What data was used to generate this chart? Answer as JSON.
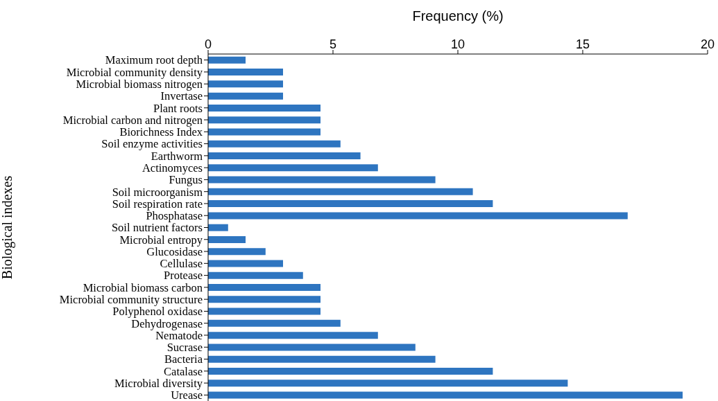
{
  "chart_data": {
    "type": "bar",
    "orientation": "horizontal",
    "xlabel": "Frequency (%)",
    "ylabel": "Biological indexes",
    "categories": [
      "Maximum root depth",
      "Microbial community density",
      "Microbial biomass nitrogen",
      "Invertase",
      "Plant roots",
      "Microbial carbon and nitrogen",
      "Biorichness Index",
      "Soil enzyme activities",
      "Earthworm",
      "Actinomyces",
      "Fungus",
      "Soil microorganism",
      "Soil respiration rate",
      "Phosphatase",
      "Soil nutrient factors",
      "Microbial entropy",
      "Glucosidase",
      "Cellulase",
      "Protease",
      "Microbial biomass carbon",
      "Microbial community structure",
      "Polyphenol oxidase",
      "Dehydrogenase",
      "Nematode",
      "Sucrase",
      "Bacteria",
      "Catalase",
      "Microbial diversity",
      "Urease"
    ],
    "values": [
      1.5,
      3.0,
      3.0,
      3.0,
      4.5,
      4.5,
      4.5,
      5.3,
      6.1,
      6.8,
      9.1,
      10.6,
      11.4,
      16.8,
      0.8,
      1.5,
      2.3,
      3.0,
      3.8,
      4.5,
      4.5,
      4.5,
      5.3,
      6.8,
      8.3,
      9.1,
      11.4,
      14.4,
      19.0
    ],
    "color": "#2e75c0",
    "xlim": [
      0,
      20
    ],
    "xticks": [
      0,
      5,
      10,
      15,
      20
    ],
    "grid": false
  }
}
